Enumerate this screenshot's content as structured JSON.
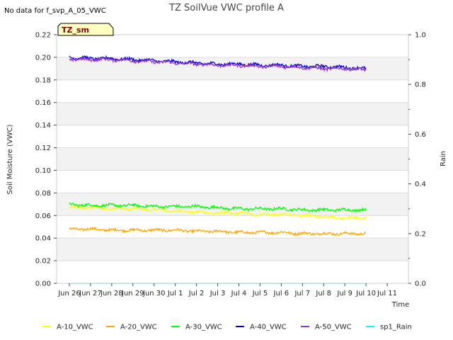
{
  "chart_data": {
    "type": "line",
    "title": "TZ SoilVue VWC profile A",
    "no_data_note": "No data for f_svp_A_05_VWC",
    "badge": "TZ_sm",
    "xlabel": "Time",
    "ylabel": "Soil Moisture (VWC)",
    "ylabel_right": "Rain",
    "xlim": [
      25.4,
      42.0
    ],
    "ylim": [
      0.0,
      0.22
    ],
    "ylim_right": [
      0.0,
      1.0
    ],
    "x_ticks": [
      {
        "x": 26,
        "label": "Jun 26"
      },
      {
        "x": 27,
        "label": "Jun 27"
      },
      {
        "x": 28,
        "label": "Jun 28"
      },
      {
        "x": 29,
        "label": "Jun 29"
      },
      {
        "x": 30,
        "label": "Jun 30"
      },
      {
        "x": 31,
        "label": "Jul 1"
      },
      {
        "x": 32,
        "label": "Jul 2"
      },
      {
        "x": 33,
        "label": "Jul 3"
      },
      {
        "x": 34,
        "label": "Jul 4"
      },
      {
        "x": 35,
        "label": "Jul 5"
      },
      {
        "x": 36,
        "label": "Jul 6"
      },
      {
        "x": 37,
        "label": "Jul 7"
      },
      {
        "x": 38,
        "label": "Jul 8"
      },
      {
        "x": 39,
        "label": "Jul 9"
      },
      {
        "x": 40,
        "label": "Jul 10"
      },
      {
        "x": 41,
        "label": "Jul 11"
      }
    ],
    "y_ticks": [
      {
        "v": 0.0,
        "label": "0.00"
      },
      {
        "v": 0.02,
        "label": "0.02"
      },
      {
        "v": 0.04,
        "label": "0.04"
      },
      {
        "v": 0.06,
        "label": "0.06"
      },
      {
        "v": 0.08,
        "label": "0.08"
      },
      {
        "v": 0.1,
        "label": "0.10"
      },
      {
        "v": 0.12,
        "label": "0.12"
      },
      {
        "v": 0.14,
        "label": "0.14"
      },
      {
        "v": 0.16,
        "label": "0.16"
      },
      {
        "v": 0.18,
        "label": "0.18"
      },
      {
        "v": 0.2,
        "label": "0.20"
      },
      {
        "v": 0.22,
        "label": "0.22"
      }
    ],
    "y_ticks_right": [
      {
        "v": 0.0,
        "label": "0.0"
      },
      {
        "v": 0.2,
        "label": "0.2"
      },
      {
        "v": 0.4,
        "label": "0.4"
      },
      {
        "v": 0.6,
        "label": "0.6"
      },
      {
        "v": 0.8,
        "label": "0.8"
      },
      {
        "v": 1.0,
        "label": "1.0"
      }
    ],
    "x": [
      26.0,
      27.0,
      28.0,
      29.0,
      30.0,
      31.0,
      32.0,
      33.0,
      34.0,
      35.0,
      36.0,
      37.0,
      38.0,
      39.0,
      40.0
    ],
    "series": [
      {
        "name": "A-10_VWC",
        "axis": "left",
        "color": "#ffff00",
        "values": [
          0.067,
          0.067,
          0.066,
          0.066,
          0.065,
          0.064,
          0.063,
          0.062,
          0.062,
          0.061,
          0.061,
          0.06,
          0.059,
          0.058,
          0.058
        ]
      },
      {
        "name": "A-20_VWC",
        "axis": "left",
        "color": "#ffa500",
        "values": [
          0.048,
          0.048,
          0.047,
          0.047,
          0.047,
          0.047,
          0.046,
          0.046,
          0.045,
          0.045,
          0.045,
          0.044,
          0.044,
          0.044,
          0.044
        ]
      },
      {
        "name": "A-30_VWC",
        "axis": "left",
        "color": "#00ff00",
        "values": [
          0.07,
          0.069,
          0.069,
          0.069,
          0.068,
          0.068,
          0.068,
          0.067,
          0.066,
          0.066,
          0.066,
          0.065,
          0.065,
          0.065,
          0.065
        ]
      },
      {
        "name": "A-40_VWC",
        "axis": "left",
        "color": "#0000cd",
        "values": [
          0.2,
          0.199,
          0.199,
          0.198,
          0.197,
          0.196,
          0.195,
          0.194,
          0.194,
          0.193,
          0.193,
          0.192,
          0.192,
          0.191,
          0.19
        ]
      },
      {
        "name": "A-50_VWC",
        "axis": "left",
        "color": "#9932cc",
        "values": [
          0.198,
          0.198,
          0.198,
          0.197,
          0.196,
          0.195,
          0.194,
          0.193,
          0.193,
          0.192,
          0.192,
          0.191,
          0.19,
          0.19,
          0.189
        ]
      },
      {
        "name": "sp1_Rain",
        "axis": "right",
        "color": "#00ffff",
        "values": [
          0,
          0,
          0,
          0,
          0,
          0,
          0,
          0,
          0,
          0,
          0,
          0,
          0,
          0,
          0
        ]
      }
    ]
  }
}
